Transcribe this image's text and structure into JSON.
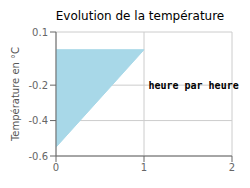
{
  "chart_data": {
    "type": "area",
    "title": "Evolution de la température",
    "ylabel": "Température en °C",
    "x": [
      0,
      0,
      1
    ],
    "values": [
      0.0,
      -0.55,
      0.0
    ],
    "color": "#a8d8e8",
    "xlim": [
      0,
      2
    ],
    "ylim": [
      -0.6,
      0.1
    ],
    "xticks": [
      0,
      1,
      2
    ],
    "yticks": [
      0.1,
      -0.2,
      -0.4,
      -0.6
    ],
    "grid": true,
    "annotations": [
      {
        "text": "heure par heure",
        "x": 1.05,
        "y": -0.2
      }
    ]
  }
}
